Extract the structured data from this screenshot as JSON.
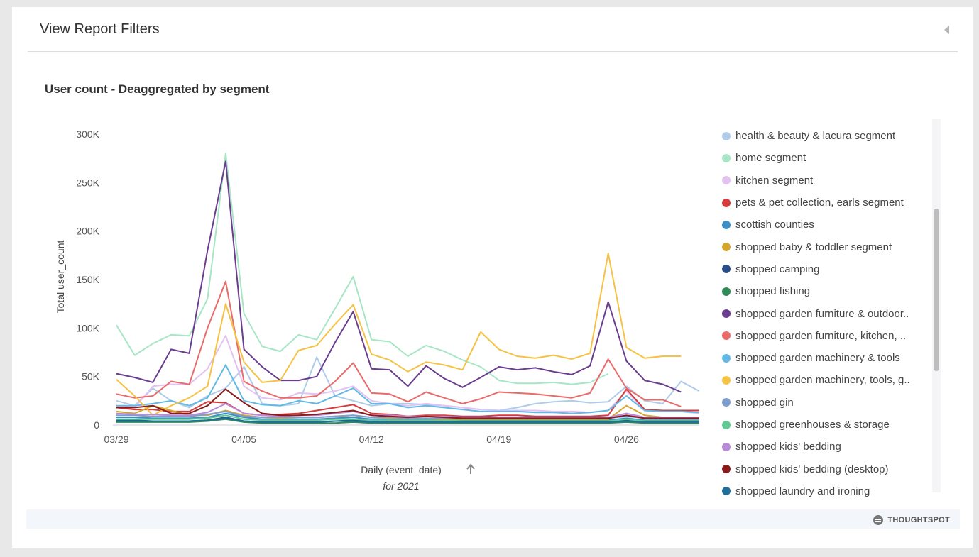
{
  "header": {
    "title": "View Report Filters"
  },
  "brand": {
    "name": "THOUGHTSPOT"
  },
  "chart_data": {
    "type": "line",
    "title": "User count - Deaggregated by segment",
    "xlabel": "Daily (event_date)",
    "xsublabel": "for 2021",
    "ylabel": "Total user_count",
    "sort_icon": "up-arrow-icon",
    "y_ticks": [
      "0",
      "50K",
      "100K",
      "150K",
      "200K",
      "250K",
      "300K"
    ],
    "ylim": [
      0,
      300000
    ],
    "x_ticks": [
      {
        "index": 0,
        "label": "03/29"
      },
      {
        "index": 7,
        "label": "04/05"
      },
      {
        "index": 14,
        "label": "04/12"
      },
      {
        "index": 21,
        "label": "04/19"
      },
      {
        "index": 28,
        "label": "04/26"
      }
    ],
    "x": [
      "03/29",
      "03/30",
      "03/31",
      "04/01",
      "04/02",
      "04/03",
      "04/04",
      "04/05",
      "04/06",
      "04/07",
      "04/08",
      "04/09",
      "04/10",
      "04/11",
      "04/12",
      "04/13",
      "04/14",
      "04/15",
      "04/16",
      "04/17",
      "04/18",
      "04/19",
      "04/20",
      "04/21",
      "04/22",
      "04/23",
      "04/24",
      "04/25",
      "04/26",
      "04/27",
      "04/28",
      "04/29",
      "04/30"
    ],
    "series": [
      {
        "name": "health & beauty & lacura segment",
        "color": "#aecbea",
        "values": [
          25000,
          20000,
          38000,
          25000,
          18000,
          30000,
          38000,
          60000,
          22000,
          20000,
          22000,
          70000,
          30000,
          25000,
          20000,
          22000,
          22000,
          21000,
          20000,
          18000,
          16000,
          15000,
          18000,
          22000,
          24000,
          25000,
          23000,
          24000,
          40000,
          25000,
          22000,
          45000,
          35000
        ]
      },
      {
        "name": "home segment",
        "color": "#a6e6c5",
        "values": [
          103000,
          72000,
          84000,
          93000,
          92000,
          130000,
          280000,
          115000,
          81000,
          76000,
          93000,
          88000,
          120000,
          153000,
          88000,
          86000,
          71000,
          82000,
          76000,
          67000,
          60000,
          46000,
          43000,
          43000,
          44000,
          42000,
          44000,
          53000,
          null,
          null,
          null,
          null,
          null
        ]
      },
      {
        "name": "kitchen segment",
        "color": "#e3c1f1",
        "values": [
          20000,
          18000,
          40000,
          42000,
          42000,
          58000,
          92000,
          40000,
          28000,
          26000,
          33000,
          32000,
          35000,
          40000,
          25000,
          22000,
          20000,
          22000,
          20000,
          18000,
          16000,
          15000,
          15000,
          15000,
          14000,
          14000,
          13000,
          15000,
          35000,
          15000,
          14000,
          14000,
          12000
        ]
      },
      {
        "name": "pets & pet collection, earls segment",
        "color": "#d63a3a",
        "values": [
          18000,
          16000,
          16000,
          14000,
          14000,
          24000,
          23000,
          12000,
          10000,
          11000,
          12000,
          15000,
          18000,
          21000,
          12000,
          11000,
          9000,
          10000,
          10000,
          9000,
          9000,
          10000,
          10000,
          9000,
          9000,
          9000,
          9000,
          10000,
          37000,
          16000,
          15000,
          15000,
          15000
        ]
      },
      {
        "name": "scottish counties",
        "color": "#3a8fc4",
        "values": [
          8000,
          8000,
          7000,
          7000,
          7000,
          8000,
          12000,
          8000,
          6000,
          6000,
          6000,
          6000,
          7000,
          8000,
          6000,
          6000,
          6000,
          6000,
          5000,
          5000,
          5000,
          5000,
          5000,
          5000,
          5000,
          5000,
          5000,
          5000,
          7000,
          5000,
          5000,
          5000,
          5000
        ]
      },
      {
        "name": "shopped baby & toddler segment",
        "color": "#d4a72c",
        "values": [
          14000,
          12000,
          20000,
          15000,
          10000,
          10000,
          15000,
          10000,
          8000,
          7000,
          8000,
          8000,
          9000,
          10000,
          8000,
          7000,
          7000,
          7000,
          6000,
          6000,
          6000,
          6000,
          6000,
          6000,
          6000,
          6000,
          6000,
          6000,
          20000,
          10000,
          8000,
          8000,
          7000
        ]
      },
      {
        "name": "shopped camping",
        "color": "#284f8a",
        "values": [
          5000,
          5000,
          4000,
          4000,
          4000,
          5000,
          8000,
          4000,
          3000,
          3000,
          3000,
          3000,
          4000,
          5000,
          4000,
          3000,
          3000,
          3000,
          3000,
          3000,
          3000,
          3000,
          3000,
          3000,
          3000,
          3000,
          3000,
          3000,
          5000,
          3000,
          3000,
          3000,
          3000
        ]
      },
      {
        "name": "shopped fishing",
        "color": "#2e8b57",
        "values": [
          3000,
          3000,
          3000,
          3000,
          3000,
          4000,
          6000,
          3000,
          2000,
          2000,
          2000,
          2000,
          2000,
          3000,
          2000,
          2000,
          2000,
          2000,
          2000,
          2000,
          2000,
          2000,
          2000,
          2000,
          2000,
          2000,
          2000,
          2000,
          3000,
          2000,
          2000,
          2000,
          2000
        ]
      },
      {
        "name": "shopped garden furniture & outdoor..",
        "color": "#6b3d8e",
        "values": [
          53000,
          49000,
          44000,
          78000,
          74000,
          180000,
          272000,
          78000,
          60000,
          46000,
          46000,
          50000,
          85000,
          117000,
          58000,
          57000,
          40000,
          61000,
          48000,
          39000,
          49000,
          60000,
          57000,
          59000,
          55000,
          52000,
          61000,
          127000,
          66000,
          46000,
          42000,
          34000,
          null
        ]
      },
      {
        "name": "shopped garden furniture, kitchen, ..",
        "color": "#ea6a6a",
        "values": [
          32000,
          28000,
          30000,
          45000,
          42000,
          100000,
          148000,
          45000,
          35000,
          28000,
          28000,
          30000,
          45000,
          64000,
          33000,
          32000,
          24000,
          34000,
          28000,
          22000,
          27000,
          34000,
          33000,
          32000,
          30000,
          28000,
          33000,
          68000,
          38000,
          26000,
          26000,
          19000,
          null
        ]
      },
      {
        "name": "shopped garden machinery & tools",
        "color": "#62b8e6",
        "values": [
          20000,
          20000,
          22000,
          25000,
          20000,
          28000,
          62000,
          25000,
          21000,
          20000,
          25000,
          22000,
          30000,
          38000,
          22000,
          22000,
          18000,
          20000,
          18000,
          16000,
          14000,
          14000,
          14000,
          13000,
          13000,
          12000,
          13000,
          15000,
          30000,
          15000,
          14000,
          14000,
          13000
        ]
      },
      {
        "name": "shopped garden machinery, tools, g..",
        "color": "#f5c243",
        "values": [
          47000,
          30000,
          10000,
          20000,
          28000,
          40000,
          125000,
          65000,
          44000,
          46000,
          77000,
          82000,
          104000,
          124000,
          73000,
          67000,
          55000,
          65000,
          62000,
          57000,
          96000,
          78000,
          71000,
          69000,
          72000,
          68000,
          74000,
          177000,
          80000,
          69000,
          71000,
          71000,
          null
        ]
      },
      {
        "name": "shopped gin",
        "color": "#7d9ccf",
        "values": [
          10000,
          10000,
          9000,
          9000,
          9000,
          11000,
          14000,
          9000,
          8000,
          8000,
          8000,
          8000,
          9000,
          10000,
          8000,
          8000,
          7000,
          7000,
          7000,
          7000,
          7000,
          7000,
          7000,
          7000,
          7000,
          7000,
          7000,
          7000,
          9000,
          7000,
          7000,
          7000,
          7000
        ]
      },
      {
        "name": "shopped greenhouses & storage",
        "color": "#5ec990",
        "values": [
          6000,
          6000,
          6000,
          6000,
          6000,
          7000,
          10000,
          6000,
          5000,
          5000,
          5000,
          5000,
          6000,
          6000,
          5000,
          5000,
          5000,
          5000,
          5000,
          4000,
          4000,
          4000,
          4000,
          4000,
          4000,
          4000,
          4000,
          4000,
          6000,
          4000,
          4000,
          4000,
          4000
        ]
      },
      {
        "name": "shopped kids' bedding",
        "color": "#b88ada",
        "values": [
          12000,
          11000,
          11000,
          10000,
          10000,
          13000,
          22000,
          12000,
          10000,
          9000,
          10000,
          10000,
          12000,
          14000,
          10000,
          10000,
          9000,
          9000,
          9000,
          8000,
          8000,
          8000,
          8000,
          8000,
          8000,
          8000,
          8000,
          8000,
          12000,
          8000,
          8000,
          8000,
          8000
        ]
      },
      {
        "name": "shopped kids' bedding (desktop)",
        "color": "#8b1a1a",
        "values": [
          18000,
          18000,
          20000,
          12000,
          12000,
          20000,
          37000,
          23000,
          12000,
          10000,
          10000,
          11000,
          13000,
          15000,
          10000,
          9000,
          8000,
          9000,
          8000,
          7000,
          7000,
          7000,
          7000,
          7000,
          7000,
          7000,
          7000,
          7000,
          10000,
          7000,
          7000,
          7000,
          7000
        ]
      },
      {
        "name": "shopped laundry and ironing",
        "color": "#1f6f9a",
        "values": [
          4000,
          4000,
          4000,
          4000,
          4000,
          5000,
          7000,
          4000,
          3000,
          3000,
          3000,
          3000,
          4000,
          4000,
          3000,
          3000,
          3000,
          3000,
          3000,
          3000,
          3000,
          3000,
          3000,
          3000,
          3000,
          3000,
          3000,
          3000,
          4000,
          3000,
          3000,
          3000,
          3000
        ]
      }
    ]
  }
}
